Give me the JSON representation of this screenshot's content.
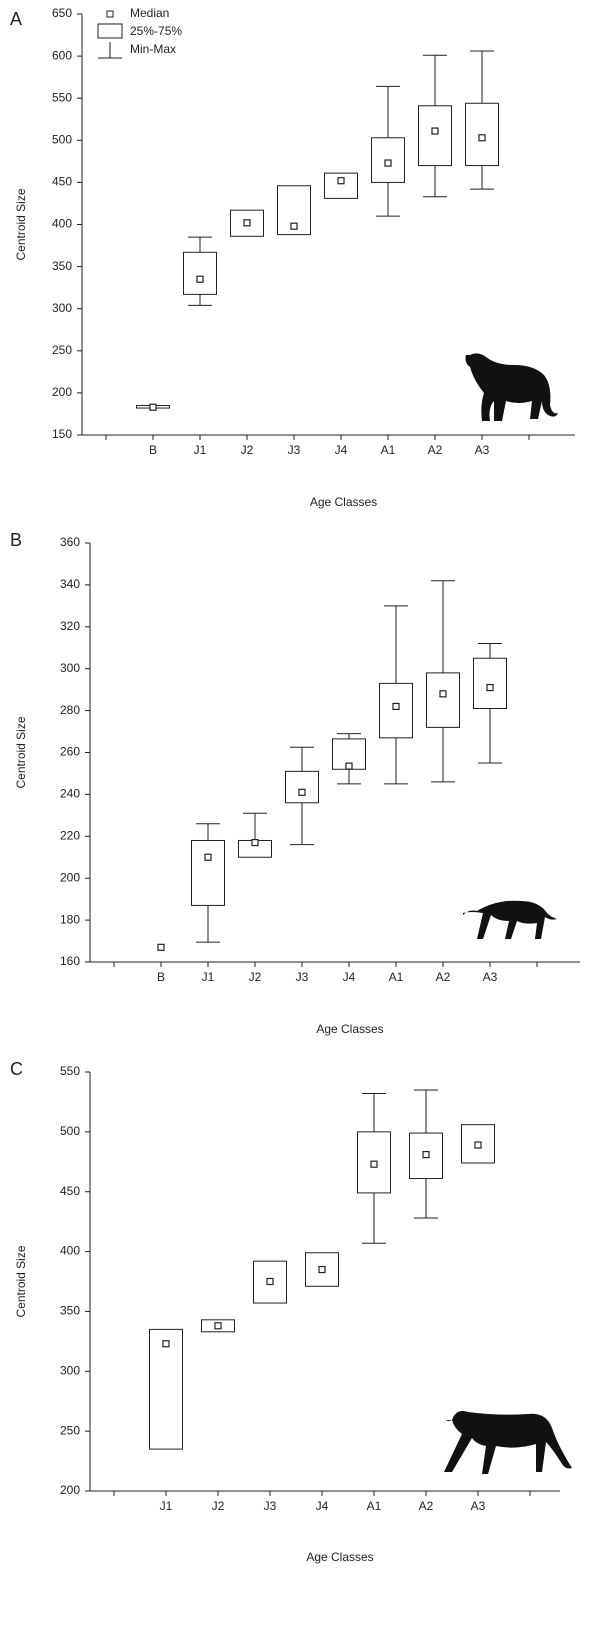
{
  "chart_data": [
    {
      "type": "box",
      "panel": "A",
      "ylabel": "Centroid Size",
      "xlabel": "Age Classes",
      "categories": [
        "B",
        "J1",
        "J2",
        "J3",
        "J4",
        "A1",
        "A2",
        "A3"
      ],
      "min": [
        182,
        304,
        386,
        388,
        431,
        410,
        433,
        442
      ],
      "q1": [
        182,
        317,
        386,
        388,
        431,
        450,
        470,
        470
      ],
      "median": [
        183,
        335,
        402,
        398,
        452,
        473,
        511,
        503
      ],
      "q3": [
        185,
        367,
        417,
        446,
        461,
        503,
        541,
        544
      ],
      "max": [
        185,
        385,
        417,
        446,
        461,
        564,
        601,
        606
      ],
      "ylim": [
        150,
        650
      ],
      "yticks": [
        150,
        200,
        250,
        300,
        350,
        400,
        450,
        500,
        550,
        600,
        650
      ],
      "legend": [
        "Median",
        "25%-75%",
        "Min-Max"
      ]
    },
    {
      "type": "box",
      "panel": "B",
      "ylabel": "Centroid Size",
      "xlabel": "Age Classes",
      "categories": [
        "B",
        "J1",
        "J2",
        "J3",
        "J4",
        "A1",
        "A2",
        "A3"
      ],
      "min": [
        167,
        169.5,
        210,
        216,
        245,
        245,
        246,
        255
      ],
      "q1": [
        167,
        187,
        210,
        236,
        252,
        267,
        272,
        281
      ],
      "median": [
        167,
        210,
        217,
        241,
        253.5,
        282,
        288,
        291
      ],
      "q3": [
        167,
        218,
        218,
        251,
        266.5,
        293,
        298,
        305
      ],
      "max": [
        167,
        226,
        231,
        262.5,
        269,
        330,
        342,
        312
      ],
      "ylim": [
        160,
        360
      ],
      "yticks": [
        160,
        180,
        200,
        220,
        240,
        260,
        280,
        300,
        320,
        340,
        360
      ]
    },
    {
      "type": "box",
      "panel": "C",
      "ylabel": "Centroid Size",
      "xlabel": "Age Classes",
      "categories": [
        "J1",
        "J2",
        "J3",
        "J4",
        "A1",
        "A2",
        "A3"
      ],
      "min": [
        235,
        333,
        357,
        371,
        407,
        428,
        474
      ],
      "q1": [
        235,
        333,
        357,
        371,
        449,
        461,
        474
      ],
      "median": [
        323,
        338,
        375,
        385,
        473,
        481,
        489
      ],
      "q3": [
        335,
        343,
        392,
        399,
        500,
        499,
        506
      ],
      "max": [
        335,
        343,
        392,
        399,
        532,
        535,
        506
      ],
      "ylim": [
        200,
        550
      ],
      "yticks": [
        200,
        250,
        300,
        350,
        400,
        450,
        500,
        550
      ]
    }
  ]
}
